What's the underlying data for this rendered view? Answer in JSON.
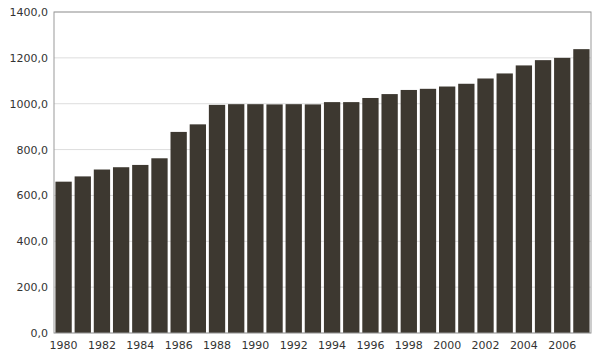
{
  "chart_data": {
    "type": "bar",
    "categories": [
      "1980",
      null,
      "1982",
      null,
      "1984",
      null,
      "1986",
      null,
      "1988",
      null,
      "1990",
      null,
      "1992",
      null,
      "1994",
      null,
      "1996",
      null,
      "1998",
      null,
      "2000",
      null,
      "2002",
      null,
      "2004",
      null,
      "2006",
      null
    ],
    "values": [
      660,
      683,
      713,
      723,
      733,
      762,
      877,
      910,
      995,
      998,
      998,
      997,
      998,
      997,
      1007,
      1007,
      1025,
      1042,
      1060,
      1065,
      1075,
      1087,
      1110,
      1132,
      1167,
      1190,
      1200,
      1238
    ],
    "color": "#3d3830",
    "ylim": [
      0,
      1400
    ],
    "yticks": [
      {
        "value": 0,
        "label": "0,0"
      },
      {
        "value": 200,
        "label": "200,0"
      },
      {
        "value": 400,
        "label": "400,0"
      },
      {
        "value": 600,
        "label": "600,0"
      },
      {
        "value": 800,
        "label": "800,0"
      },
      {
        "value": 1000,
        "label": "1000,0"
      },
      {
        "value": 1200,
        "label": "1200,0"
      },
      {
        "value": 1400,
        "label": "1400,0"
      }
    ],
    "grid": true
  }
}
